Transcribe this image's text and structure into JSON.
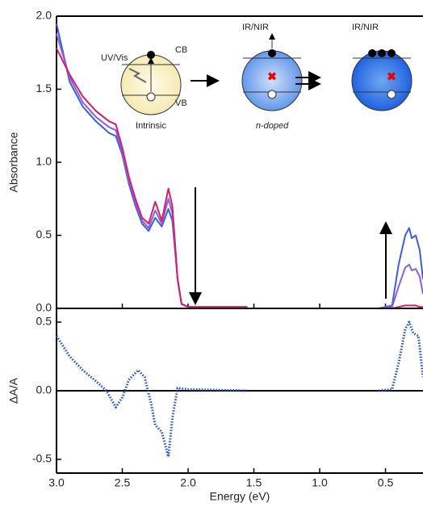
{
  "chart_data": [
    {
      "type": "line",
      "y_label": "Absorbance",
      "xlim": [
        3.0,
        0.215
      ],
      "ylim": [
        0,
        2.0
      ],
      "xticks": [
        {
          "value": 3.0,
          "label": "3.0"
        },
        2.5,
        {
          "value": 2.0,
          "label": "2.0"
        },
        1.5,
        {
          "value": 1.0,
          "label": "1.0"
        },
        0.5
      ],
      "yticks": [
        {
          "value": 0,
          "label": "0.0"
        },
        0.5,
        {
          "value": 1.0,
          "label": "1.0"
        },
        1.5,
        {
          "value": 2.0,
          "label": "2.0"
        }
      ],
      "x": [
        3.0,
        2.9,
        2.8,
        2.7,
        2.6,
        2.55,
        2.5,
        2.45,
        2.4,
        2.35,
        2.3,
        2.25,
        2.2,
        2.15,
        2.12,
        2.08,
        2.05,
        2.0,
        1.55,
        1.0,
        0.55,
        0.45,
        0.4,
        0.35,
        0.32,
        0.3,
        0.27,
        0.24,
        0.215
      ],
      "series": [
        {
          "color": "#3f5fd6",
          "values": [
            1.95,
            1.55,
            1.38,
            1.28,
            1.2,
            1.18,
            1.05,
            0.85,
            0.7,
            0.58,
            0.53,
            0.62,
            0.56,
            0.68,
            0.6,
            0.2,
            0.03,
            0.01,
            0.01,
            null,
            0,
            0.02,
            0.3,
            0.5,
            0.55,
            0.48,
            0.5,
            0.4,
            0.2
          ]
        },
        {
          "color": "#8a5ee0",
          "values": [
            1.88,
            1.58,
            1.41,
            1.31,
            1.24,
            1.22,
            1.07,
            0.87,
            0.72,
            0.6,
            0.55,
            0.67,
            0.58,
            0.75,
            0.65,
            0.2,
            0.03,
            0.01,
            0.01,
            null,
            0,
            0.01,
            0.15,
            0.28,
            0.3,
            0.26,
            0.27,
            0.22,
            0.1
          ]
        },
        {
          "color": "#d81b6a",
          "values": [
            1.78,
            1.6,
            1.45,
            1.35,
            1.28,
            1.26,
            1.1,
            0.9,
            0.75,
            0.62,
            0.58,
            0.73,
            0.6,
            0.82,
            0.7,
            0.2,
            0.03,
            0.01,
            0.01,
            null,
            0,
            0,
            0.01,
            0.02,
            0.02,
            0.02,
            0.02,
            0.01,
            0.01
          ]
        }
      ]
    },
    {
      "type": "line",
      "line_style": "dotted",
      "y_label": "ΔA/A",
      "x_label": "Energy (eV)",
      "xlim": [
        3.0,
        0.215
      ],
      "ylim": [
        -0.6,
        0.6
      ],
      "xticks": [
        {
          "value": 3.0,
          "label": "3.0"
        },
        2.5,
        {
          "value": 2.0,
          "label": "2.0"
        },
        1.5,
        {
          "value": 1.0,
          "label": "1.0"
        },
        0.5
      ],
      "yticks": [
        -0.5,
        {
          "value": 0,
          "label": "0.0"
        },
        0.5
      ],
      "x": [
        3.0,
        2.9,
        2.8,
        2.7,
        2.62,
        2.55,
        2.5,
        2.45,
        2.38,
        2.33,
        2.28,
        2.25,
        2.2,
        2.15,
        2.12,
        2.08,
        2.0,
        1.55,
        1.0,
        0.55,
        0.45,
        0.4,
        0.35,
        0.32,
        0.29,
        0.25,
        0.215
      ],
      "series": [
        {
          "color": "#1f4fd8",
          "values": [
            0.4,
            0.25,
            0.15,
            0.07,
            0.0,
            -0.12,
            -0.05,
            0.08,
            0.15,
            0.1,
            -0.1,
            -0.25,
            -0.3,
            -0.48,
            -0.2,
            0.02,
            0.01,
            0.0,
            null,
            0,
            0.01,
            0.2,
            0.45,
            0.5,
            0.42,
            0.4,
            0.1
          ]
        }
      ]
    }
  ],
  "inset": {
    "uv_label": "UV/Vis",
    "cb": "CB",
    "vb": "VB",
    "intrinsic": "Intrinsic",
    "ir_label_1": "IR/NIR",
    "ir_label_2": "IR/NIR",
    "doped": "n-doped"
  }
}
